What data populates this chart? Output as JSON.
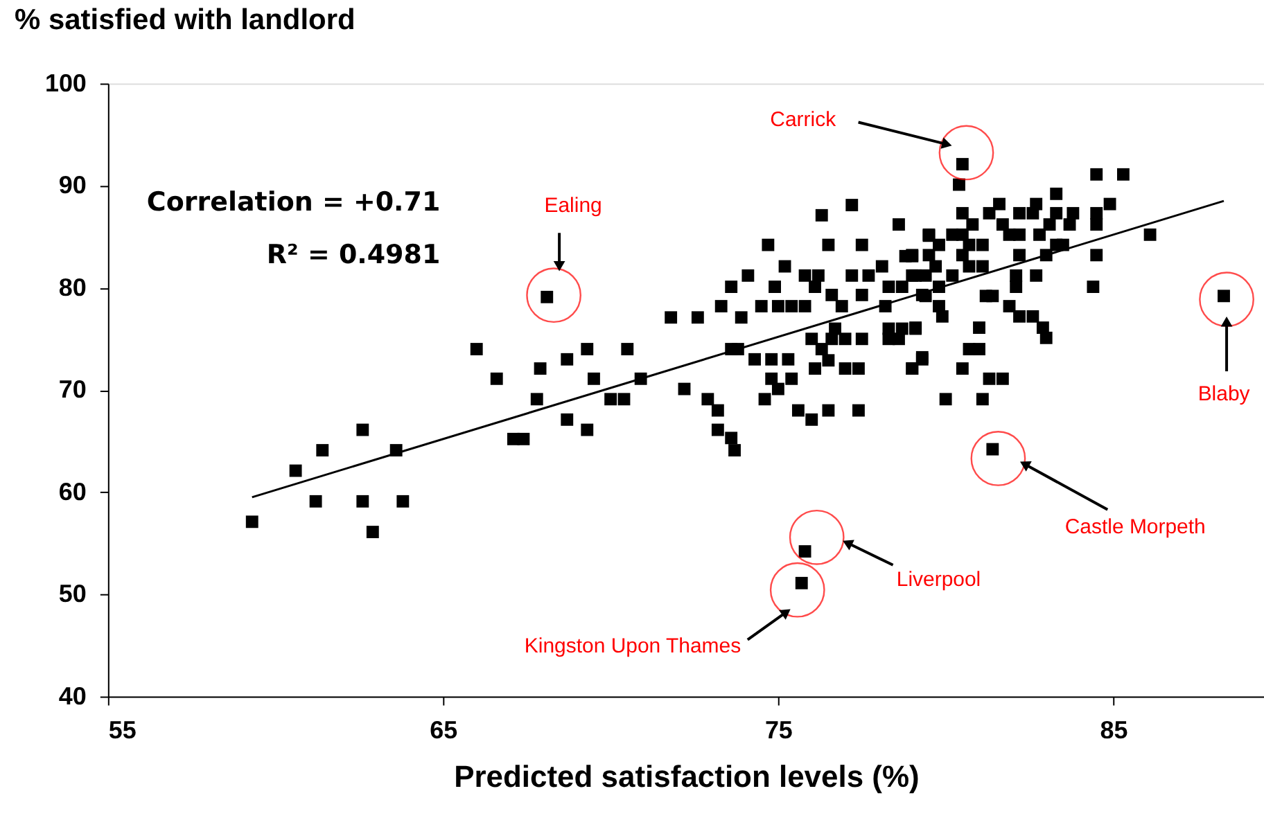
{
  "chart_data": {
    "type": "scatter",
    "xlabel": "Predicted satisfaction levels (%)",
    "ylabel": "% satisfied with landlord",
    "xlim": [
      55,
      89.5
    ],
    "ylim": [
      40,
      100
    ],
    "xticks": [
      55,
      65,
      75,
      85
    ],
    "yticks": [
      40,
      50,
      60,
      70,
      80,
      90,
      100
    ],
    "grid": false,
    "marker": "square",
    "series": [
      {
        "color": "#000000",
        "x": [
          59.3,
          60.6,
          61.2,
          61.4,
          62.6,
          62.6,
          62.9,
          63.6,
          63.8,
          66.0,
          66.6,
          67.1,
          67.4,
          67.8,
          67.9,
          68.1,
          68.7,
          69.3,
          69.5,
          68.7,
          69.3,
          70.0,
          70.4,
          70.5,
          70.9,
          71.8,
          72.6,
          73.9,
          73.3,
          74.5,
          75.0,
          75.4,
          75.8,
          73.6,
          74.9,
          76.1,
          78.3,
          78.7,
          74.1,
          75.8,
          76.2,
          77.2,
          77.7,
          75.2,
          78.1,
          78.8,
          79.0,
          74.7,
          76.5,
          77.5,
          79.5,
          77.2,
          76.3,
          78.6,
          76.6,
          76.9,
          77.5,
          78.2,
          79.3,
          79.1,
          76.7,
          76.0,
          76.6,
          77.0,
          77.5,
          78.3,
          78.7,
          79.1,
          78.3,
          78.6,
          73.6,
          73.8,
          76.3,
          76.5,
          74.3,
          74.8,
          75.3,
          79.3,
          76.1,
          77.0,
          77.4,
          79.0,
          74.8,
          75.4,
          75.0,
          74.6,
          72.2,
          72.9,
          73.2,
          75.6,
          76.5,
          77.4,
          76.0,
          73.2,
          73.6,
          73.7,
          81.4,
          81.1,
          80.0,
          75.8,
          75.7,
          80.5,
          80.4,
          84.5,
          85.3,
          83.3,
          81.6,
          82.7,
          84.9,
          80.5,
          81.3,
          82.2,
          82.6,
          83.3,
          83.8,
          84.5,
          80.8,
          81.7,
          83.1,
          83.7,
          84.5,
          79.5,
          80.2,
          80.5,
          81.9,
          82.2,
          82.8,
          86.1,
          79.8,
          80.7,
          81.1,
          83.3,
          83.5,
          79.0,
          79.5,
          80.5,
          82.2,
          83.0,
          84.5,
          79.7,
          80.7,
          81.1,
          79.0,
          79.4,
          80.2,
          82.1,
          82.7,
          84.4,
          79.8,
          82.1,
          79.4,
          81.2,
          81.4,
          88.3,
          79.8,
          81.9,
          82.2,
          82.6,
          79.9,
          82.9,
          81.0,
          79.1,
          83.0,
          80.7,
          81.0,
          79.3,
          79.0,
          80.5,
          81.3,
          81.7
        ],
        "values": [
          57.1,
          62.1,
          59.1,
          64.1,
          59.1,
          66.1,
          56.1,
          64.1,
          59.1,
          74.0,
          71.1,
          65.2,
          65.2,
          69.1,
          72.1,
          79.1,
          73.0,
          74.0,
          71.1,
          67.1,
          66.1,
          69.1,
          69.1,
          74.0,
          71.1,
          77.1,
          77.1,
          77.1,
          78.2,
          78.2,
          78.2,
          78.2,
          78.2,
          80.1,
          80.1,
          80.1,
          80.1,
          80.1,
          81.2,
          81.2,
          81.2,
          81.2,
          81.2,
          82.1,
          82.1,
          83.1,
          83.1,
          84.2,
          84.2,
          84.2,
          85.1,
          88.1,
          87.1,
          86.2,
          79.3,
          78.2,
          79.3,
          78.2,
          79.3,
          81.2,
          76.0,
          75.0,
          75.0,
          75.0,
          75.0,
          76.0,
          76.0,
          76.0,
          75.0,
          75.0,
          74.0,
          74.0,
          74.0,
          72.9,
          73.0,
          73.0,
          73.0,
          73.0,
          72.1,
          72.1,
          72.1,
          72.1,
          71.1,
          71.1,
          70.1,
          69.1,
          70.1,
          69.1,
          68.0,
          68.0,
          68.0,
          68.0,
          67.1,
          66.1,
          65.3,
          64.1,
          64.2,
          69.1,
          69.1,
          54.2,
          51.1,
          92.1,
          90.1,
          91.1,
          91.1,
          89.2,
          88.2,
          88.2,
          88.2,
          87.3,
          87.3,
          87.3,
          87.3,
          87.3,
          87.3,
          87.3,
          86.2,
          86.2,
          86.2,
          86.2,
          86.2,
          85.2,
          85.2,
          85.2,
          85.2,
          85.2,
          85.2,
          85.2,
          84.2,
          84.2,
          84.2,
          84.2,
          84.2,
          83.2,
          83.2,
          83.2,
          83.2,
          83.2,
          83.2,
          82.1,
          82.1,
          82.1,
          81.2,
          81.2,
          81.2,
          81.2,
          81.2,
          80.1,
          80.1,
          80.1,
          79.2,
          79.2,
          79.2,
          79.2,
          78.2,
          78.2,
          77.2,
          77.2,
          77.2,
          76.1,
          76.1,
          76.1,
          75.1,
          74.0,
          74.0,
          73.2,
          72.1,
          72.1,
          71.1,
          71.1
        ]
      },
      {
        "type": "line",
        "color": "#000000",
        "marker": "none",
        "line_style": "solid",
        "x": [
          59.3,
          88.3
        ],
        "values": [
          59.5,
          88.5
        ]
      }
    ],
    "annotations": [
      "Correlation = +0.71",
      "R² = 0.4981",
      "Carrick",
      "Ealing",
      "Blaby",
      "Castle Morpeth",
      "Liverpool",
      "Kingston Upon Thames"
    ]
  }
}
